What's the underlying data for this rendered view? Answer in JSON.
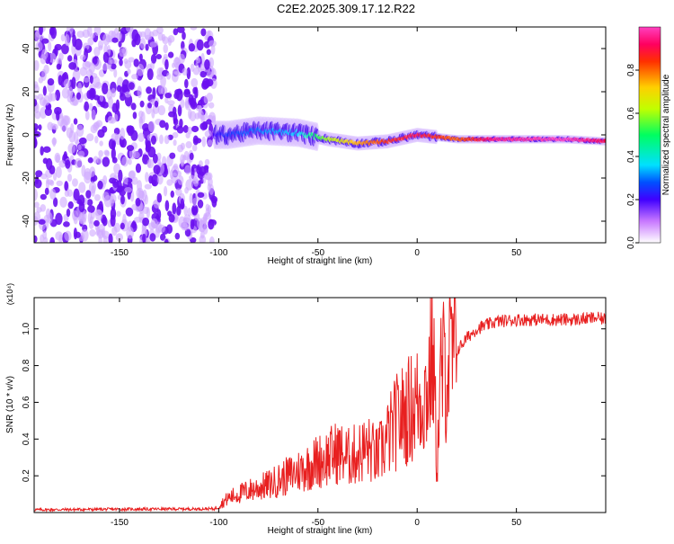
{
  "title": "C2E2.2025.309.17.12.R22",
  "colors": {
    "axis": "#000000",
    "snr_line": "#e82020",
    "background": "#ffffff"
  },
  "chart_data": [
    {
      "type": "heatmap",
      "name": "spectrogram",
      "xlabel": "Height of straight line (km)",
      "ylabel": "Frequency (Hz)",
      "xlim": [
        -193,
        95
      ],
      "ylim": [
        -50,
        50
      ],
      "xticks": [
        -150,
        -100,
        -50,
        0,
        50
      ],
      "yticks": [
        -40,
        -20,
        0,
        20,
        40
      ],
      "xticklabels": [
        "-150",
        "-100",
        "-50",
        "0",
        "50"
      ],
      "yticklabels": [
        "-40",
        "-20",
        "0",
        "20",
        "40"
      ],
      "description_points": [
        {
          "x": -193,
          "y": 0,
          "z": 0.2
        },
        {
          "x": -102,
          "y": 0,
          "z": 0.2
        },
        {
          "x": -95,
          "y": 0,
          "z": 0.25
        },
        {
          "x": -80,
          "y": 2,
          "z": 0.3
        },
        {
          "x": -60,
          "y": 1,
          "z": 0.35
        },
        {
          "x": -45,
          "y": -2,
          "z": 0.6
        },
        {
          "x": -30,
          "y": -4,
          "z": 0.75
        },
        {
          "x": -15,
          "y": -3,
          "z": 0.85
        },
        {
          "x": 0,
          "y": 0,
          "z": 0.9
        },
        {
          "x": 20,
          "y": -2,
          "z": 0.8
        },
        {
          "x": 40,
          "y": -2,
          "z": 0.95
        },
        {
          "x": 75,
          "y": -2,
          "z": 1.0
        },
        {
          "x": 95,
          "y": -3,
          "z": 0.9
        }
      ]
    },
    {
      "type": "colorbar",
      "name": "amplitude-colorbar",
      "label": "Normalized spectral amplitude",
      "range": [
        0,
        1
      ],
      "ticks": [
        0,
        0.2,
        0.4,
        0.6,
        0.8
      ],
      "ticklabels": [
        "0.0",
        "0.2",
        "0.4",
        "0.6",
        "0.8"
      ]
    },
    {
      "type": "line",
      "name": "snr",
      "xlabel": "Height of straight line (km)",
      "ylabel": "SNR (10 * v/v)",
      "scale_label": "(x10⁴)",
      "xlim": [
        -193,
        95
      ],
      "ylim": [
        0,
        1.17
      ],
      "xticks": [
        -150,
        -100,
        -50,
        0,
        50
      ],
      "yticks": [
        0.2,
        0.4,
        0.6,
        0.8,
        1.0
      ],
      "xticklabels": [
        "-150",
        "-100",
        "-50",
        "0",
        "50"
      ],
      "yticklabels": [
        "0.2",
        "0.4",
        "0.6",
        "0.8",
        "1.0"
      ],
      "x": [
        -193,
        -150,
        -102,
        -95,
        -85,
        -75,
        -65,
        -55,
        -50,
        -45,
        -40,
        -35,
        -30,
        -25,
        -20,
        -15,
        -10,
        -5,
        0,
        5,
        8,
        10,
        12,
        15,
        20,
        25,
        30,
        35,
        40,
        50,
        60,
        70,
        80,
        90,
        95
      ],
      "y": [
        0.015,
        0.018,
        0.02,
        0.08,
        0.12,
        0.15,
        0.2,
        0.25,
        0.28,
        0.3,
        0.33,
        0.3,
        0.32,
        0.35,
        0.3,
        0.4,
        0.5,
        0.55,
        0.6,
        0.65,
        0.9,
        0.25,
        0.75,
        0.8,
        0.88,
        0.95,
        1.0,
        1.02,
        1.04,
        1.05,
        1.05,
        1.05,
        1.05,
        1.06,
        1.05
      ]
    }
  ]
}
